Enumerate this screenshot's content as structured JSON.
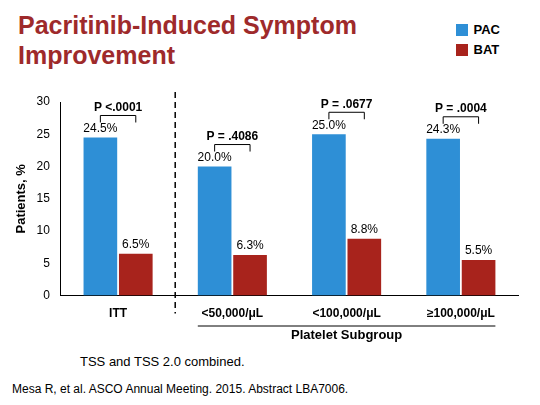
{
  "chart_data": {
    "type": "bar",
    "title": "Pacritinib-Induced Symptom Improvement",
    "y_label": "Patients, %",
    "categories": [
      "ITT",
      "<50,000/μL",
      "<100,000/μL",
      "≥100,000/μL"
    ],
    "category_group": {
      "label": "Platelet Subgroup",
      "categories": [
        "<50,000/μL",
        "<100,000/μL",
        "≥100,000/μL"
      ]
    },
    "series": [
      {
        "name": "PAC",
        "color": "#2e8fd6",
        "values": [
          24.5,
          20.0,
          25.0,
          24.3
        ],
        "value_labels": [
          "24.5%",
          "20.0%",
          "25.0%",
          "24.3%"
        ]
      },
      {
        "name": "BAT",
        "color": "#a8231c",
        "values": [
          6.5,
          6.3,
          8.8,
          5.5
        ],
        "value_labels": [
          "6.5%",
          "6.3%",
          "8.8%",
          "5.5%"
        ]
      }
    ],
    "annotations": [
      {
        "category": "ITT",
        "text": "P <.0001"
      },
      {
        "category": "<50,000/μL",
        "text": "P = .4086"
      },
      {
        "category": "<100,000/μL",
        "text": "P = .0677"
      },
      {
        "category": "≥100,000/μL",
        "text": "P = .0004"
      }
    ],
    "footnote": "TSS and TSS 2.0 combined.",
    "source": "Mesa R, et al. ASCO Annual Meeting. 2015. Abstract LBA7006.",
    "ylim": [
      0,
      30
    ],
    "yticks": [
      0,
      5,
      10,
      15,
      20,
      25,
      30
    ],
    "grid": false,
    "legend": "upper right",
    "data_labels": true
  }
}
